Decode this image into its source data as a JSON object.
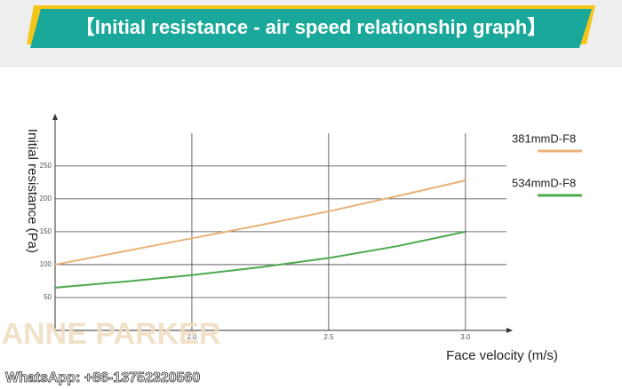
{
  "chart_data": {
    "type": "line",
    "title": "【Initial resistance - air speed relationship graph】",
    "x": [
      1.5,
      1.75,
      2.0,
      2.25,
      2.5,
      2.75,
      3.0
    ],
    "series": [
      {
        "name": "381mmD-F8",
        "color": "#e8b27a",
        "values": [
          100,
          120,
          140,
          160,
          181,
          204,
          228
        ]
      },
      {
        "name": "534mmD-F8",
        "color": "#4caa4c",
        "values": [
          65,
          74,
          84,
          96,
          110,
          128,
          150
        ]
      }
    ],
    "xlim": [
      1.5,
      3.15
    ],
    "ylim": [
      0,
      320
    ],
    "xticks": [
      {
        "value": 2,
        "label": "2.0"
      },
      2.5,
      {
        "value": 3,
        "label": "3.0"
      }
    ],
    "yticks": [
      50,
      100,
      150,
      200,
      250
    ],
    "xlabel": "Face velocity (m/s)",
    "ylabel": "Initial resistance (Pa)",
    "grid": true
  },
  "watermark": {
    "brand": "ANNE PARKER",
    "contact": "WhatsApp: +86-13752320560"
  }
}
